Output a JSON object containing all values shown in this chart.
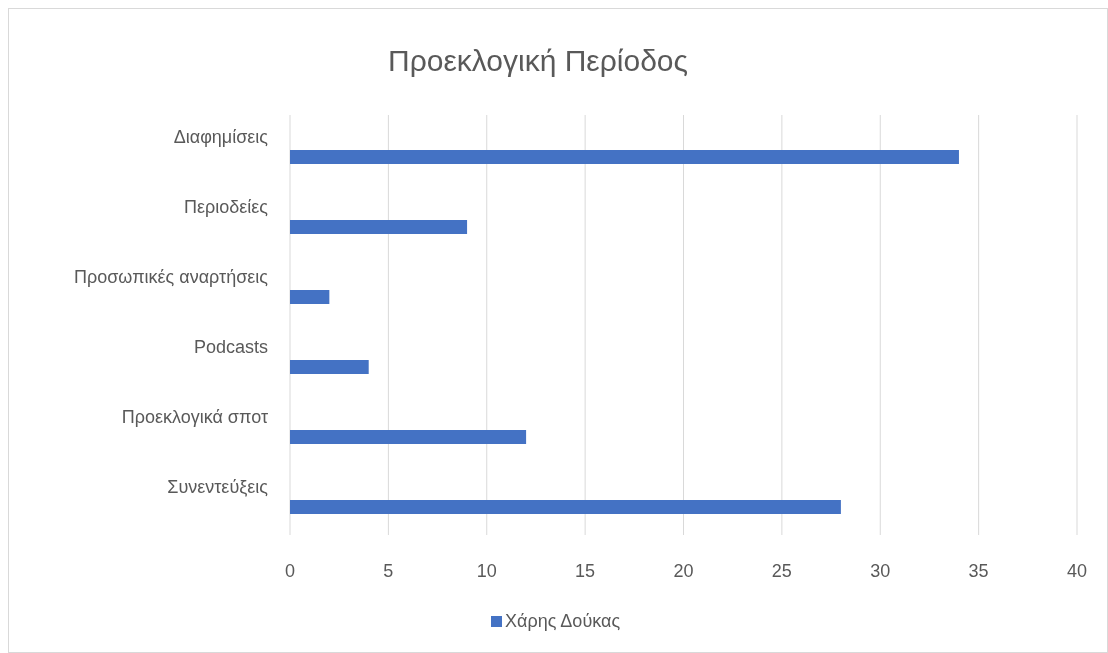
{
  "chart_data": {
    "type": "bar",
    "orientation": "horizontal",
    "title": "Προεκλογική Περίοδος",
    "categories": [
      "Διαφημίσεις",
      "Περιοδείες",
      "Προσωπικές αναρτήσεις",
      "Podcasts",
      "Προεκλογικά σποτ",
      "Συνεντεύξεις"
    ],
    "series": [
      {
        "name": "Χάρης Δούκας",
        "color": "#4472c4",
        "values": [
          34,
          9,
          2,
          4,
          12,
          28
        ]
      }
    ],
    "xlim": [
      0,
      40
    ],
    "xticks": [
      0,
      5,
      10,
      15,
      20,
      25,
      30,
      35,
      40
    ],
    "grid": "x",
    "legend": "bottom"
  }
}
